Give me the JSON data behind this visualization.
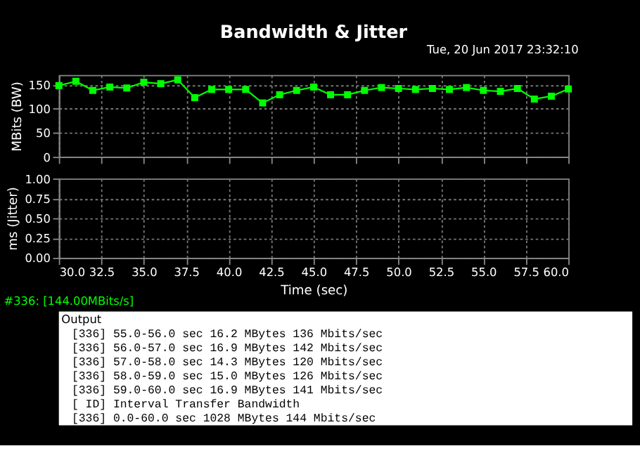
{
  "chart_data": [
    {
      "type": "line",
      "title": "Bandwidth & Jitter",
      "ylabel": "MBits (BW)",
      "annotations": [
        "Tue, 20 Jun 2017 23:32:10"
      ],
      "x": [
        30,
        31,
        32,
        33,
        34,
        35,
        36,
        37,
        38,
        39,
        40,
        41,
        42,
        43,
        44,
        45,
        46,
        47,
        48,
        49,
        50,
        51,
        52,
        53,
        54,
        55,
        56,
        57,
        58,
        59,
        60
      ],
      "series": [
        {
          "color": "#00ff00",
          "values": [
            148,
            157,
            138,
            145,
            143,
            155,
            152,
            160,
            123,
            140,
            140,
            140,
            112,
            129,
            138,
            145,
            129,
            129,
            138,
            144,
            142,
            140,
            142,
            140,
            144,
            138,
            136,
            142,
            120,
            126,
            141
          ]
        }
      ],
      "xlim": [
        30,
        60
      ],
      "xticks": [
        30,
        32.5,
        35,
        37.5,
        40,
        42.5,
        45,
        47.5,
        50,
        52.5,
        55,
        57.5,
        60
      ],
      "ylim": [
        0,
        170
      ],
      "yticks": [
        0,
        50,
        100,
        150
      ],
      "grid": true,
      "marker": "square",
      "line_style": "solid",
      "tick_labels": "y"
    },
    {
      "type": "line",
      "ylabel": "ms (Jitter)",
      "xlabel": "Time (sec)",
      "annotations": [
        "#336: [144.00MBits/s]",
        "Output",
        "[336] 55.0-56.0 sec  16.2 MBytes   136 Mbits/sec",
        "[336] 56.0-57.0 sec  16.9 MBytes   142 Mbits/sec",
        "[336] 57.0-58.0 sec  14.3 MBytes   120 Mbits/sec",
        "[336] 58.0-59.0 sec  15.0 MBytes   126 Mbits/sec",
        "[336] 59.0-60.0 sec  16.9 MBytes   141 Mbits/sec",
        "[ ID] Interval       Transfer     Bandwidth",
        "[336]  0.0-60.0 sec  1028 MBytes   144 Mbits/sec"
      ],
      "xlim": [
        30,
        60
      ],
      "xticks": [
        {
          "value": 30,
          "label": "30.0"
        },
        {
          "value": 32.5,
          "label": "32.5"
        },
        {
          "value": 35,
          "label": "35.0"
        },
        {
          "value": 37.5,
          "label": "37.5"
        },
        {
          "value": 40,
          "label": "40.0"
        },
        {
          "value": 42.5,
          "label": "42.5"
        },
        {
          "value": 45,
          "label": "45.0"
        },
        {
          "value": 47.5,
          "label": "47.5"
        },
        {
          "value": 50,
          "label": "50.0"
        },
        {
          "value": 52.5,
          "label": "52.5"
        },
        {
          "value": 55,
          "label": "55.0"
        },
        {
          "value": 57.5,
          "label": "57.5"
        },
        {
          "value": 60,
          "label": "60.0"
        }
      ],
      "ylim": [
        0,
        1
      ],
      "yticks": [
        {
          "value": 0,
          "label": "0.00"
        },
        {
          "value": 0.25,
          "label": "0.25"
        },
        {
          "value": 0.5,
          "label": "0.50"
        },
        {
          "value": 0.75,
          "label": "0.75"
        },
        {
          "value": 1,
          "label": "1.00"
        }
      ],
      "grid": true
    }
  ]
}
